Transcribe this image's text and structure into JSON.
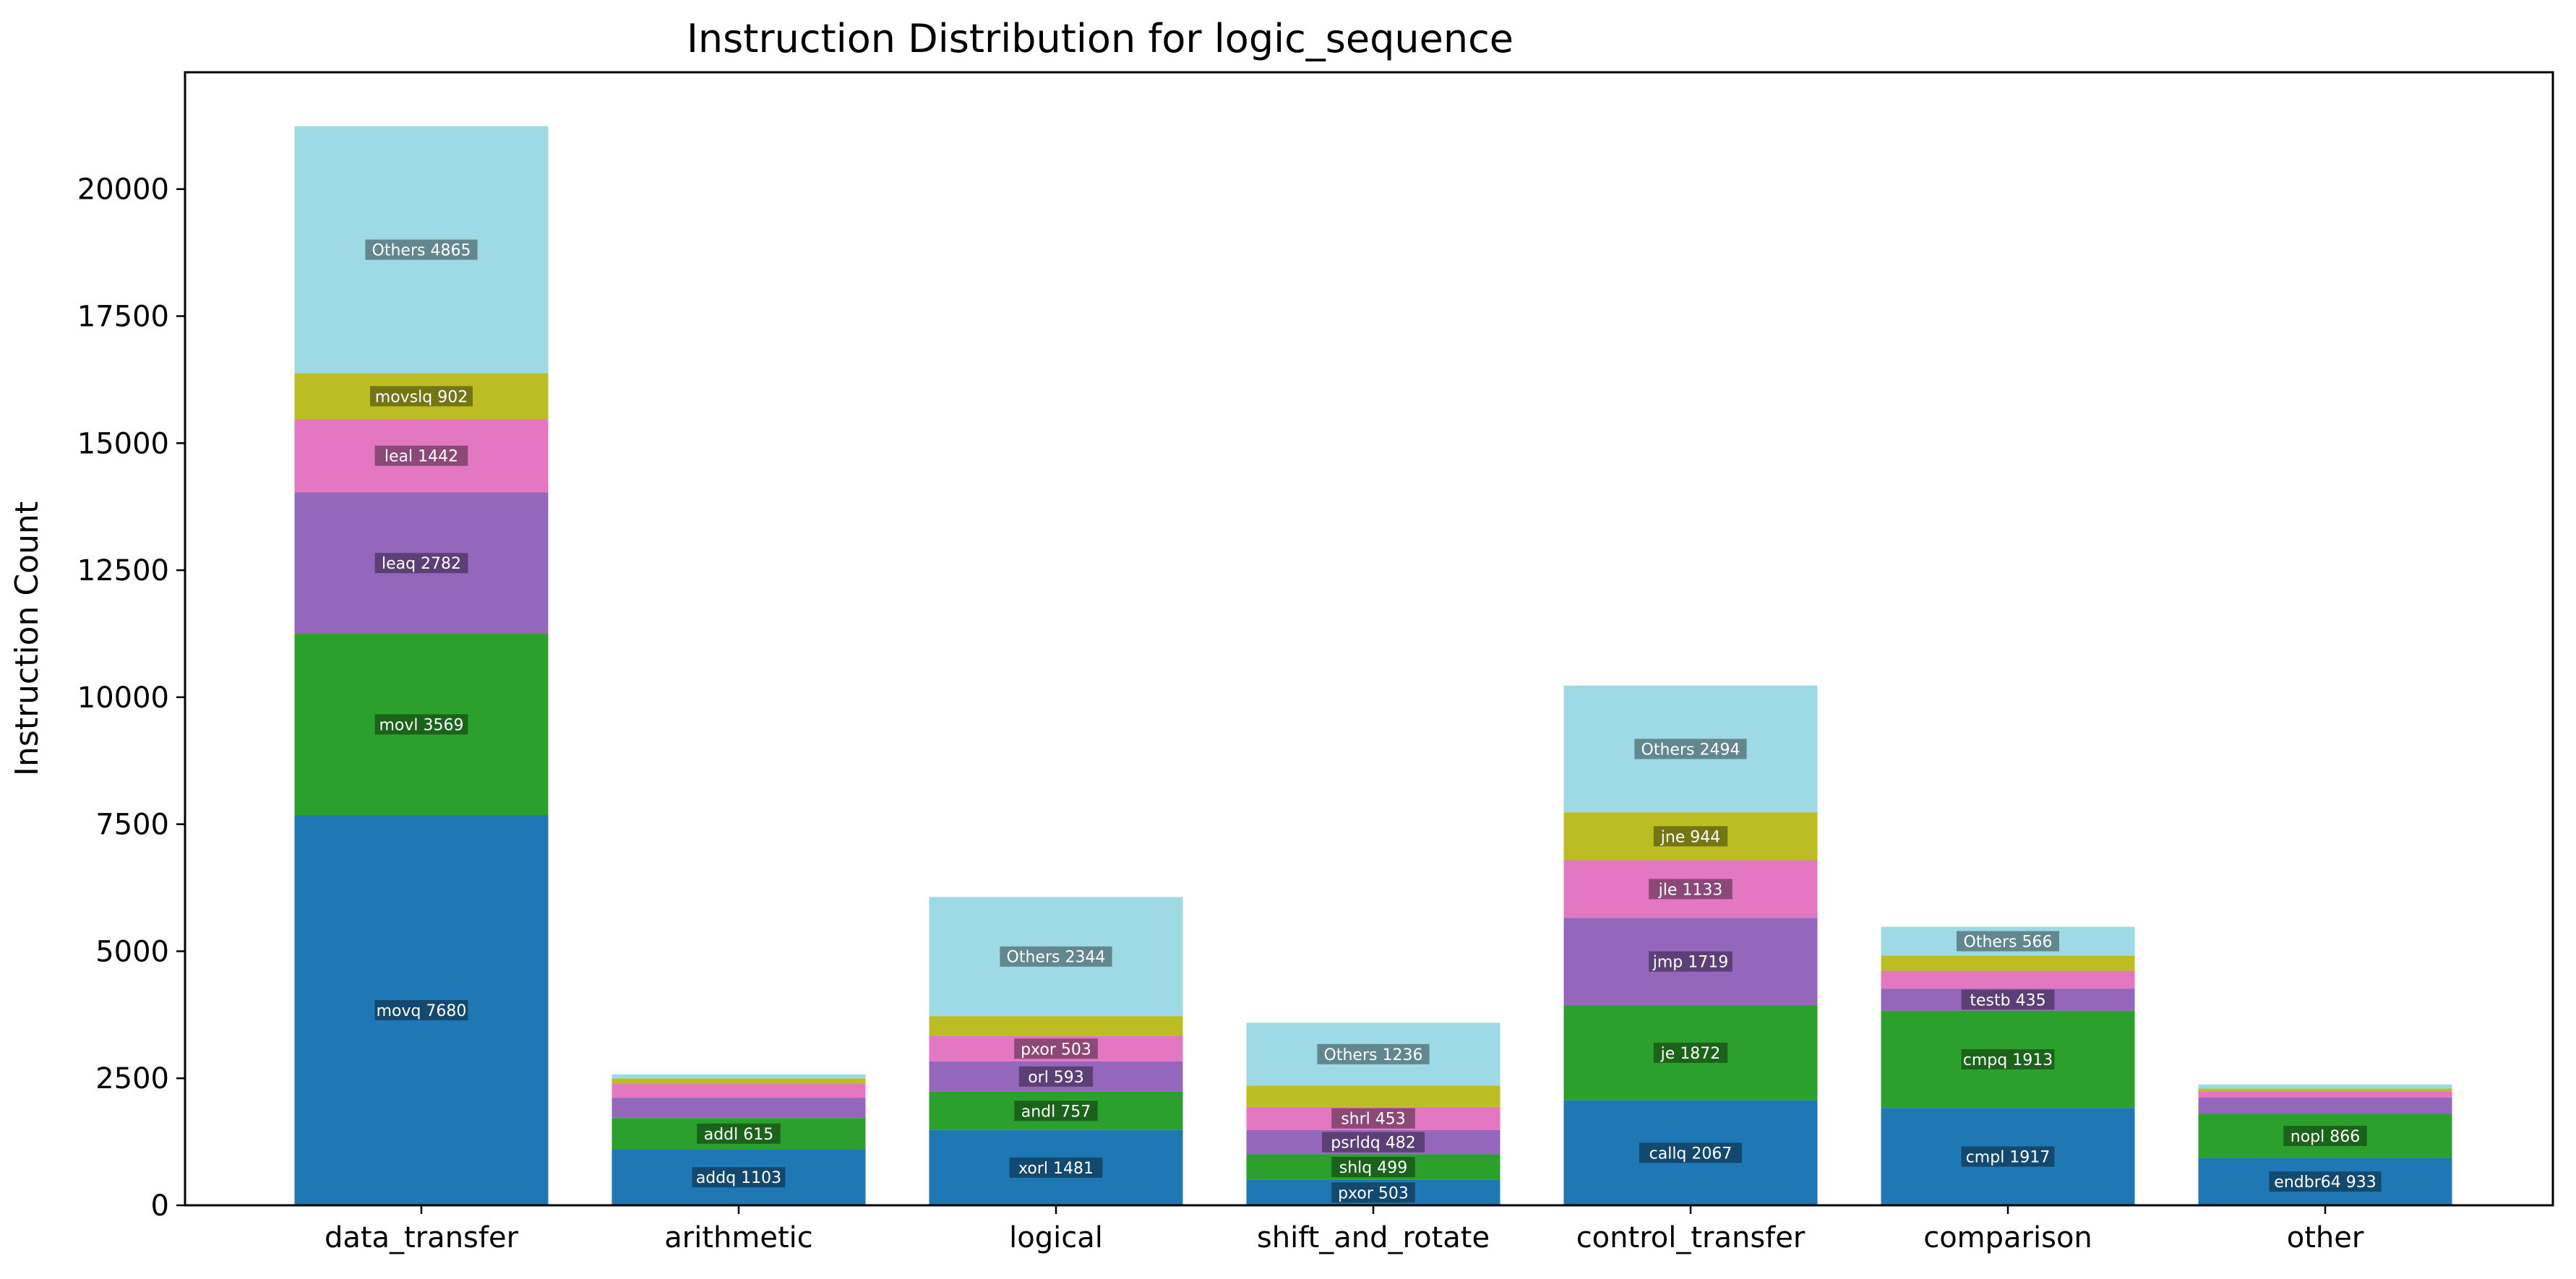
{
  "chart_data": {
    "type": "bar",
    "stacked": true,
    "title": "Instruction Distribution for logic_sequence",
    "xlabel": "",
    "ylabel": "Instruction Count",
    "ylim": [
      0,
      22300
    ],
    "yticks": [
      0,
      2500,
      5000,
      7500,
      10000,
      12500,
      15000,
      17500,
      20000
    ],
    "grid": false,
    "legend": "none",
    "segment_colors": [
      "#1f77b4",
      "#2ca02c",
      "#9467bd",
      "#e377c2",
      "#bcbd22",
      "#9edae5"
    ],
    "categories": [
      {
        "name": "data_transfer",
        "segments": [
          {
            "label": "movq 7680",
            "value": 7680
          },
          {
            "label": "movl 3569",
            "value": 3569
          },
          {
            "label": "leaq 2782",
            "value": 2782
          },
          {
            "label": "leal 1442",
            "value": 1442
          },
          {
            "label": "movslq 902",
            "value": 902
          },
          {
            "label": "Others 4865",
            "value": 4865
          }
        ]
      },
      {
        "name": "arithmetic",
        "segments": [
          {
            "label": "addq 1103",
            "value": 1103
          },
          {
            "label": "addl 615",
            "value": 615
          },
          {
            "label": "",
            "value": 400
          },
          {
            "label": "",
            "value": 280
          },
          {
            "label": "",
            "value": 100
          },
          {
            "label": "",
            "value": 80
          }
        ]
      },
      {
        "name": "logical",
        "segments": [
          {
            "label": "xorl 1481",
            "value": 1481
          },
          {
            "label": "andl 757",
            "value": 757
          },
          {
            "label": "orl 593",
            "value": 593
          },
          {
            "label": "pxor 503",
            "value": 503
          },
          {
            "label": "",
            "value": 390
          },
          {
            "label": "Others 2344",
            "value": 2344
          }
        ]
      },
      {
        "name": "shift_and_rotate",
        "segments": [
          {
            "label": "pxor 503",
            "value": 503
          },
          {
            "label": "shlq 499",
            "value": 499
          },
          {
            "label": "psrldq 482",
            "value": 482
          },
          {
            "label": "shrl 453",
            "value": 453
          },
          {
            "label": "",
            "value": 420
          },
          {
            "label": "Others 1236",
            "value": 1236
          }
        ]
      },
      {
        "name": "control_transfer",
        "segments": [
          {
            "label": "callq 2067",
            "value": 2067
          },
          {
            "label": "je 1872",
            "value": 1872
          },
          {
            "label": "jmp 1719",
            "value": 1719
          },
          {
            "label": "jle 1133",
            "value": 1133
          },
          {
            "label": "jne 944",
            "value": 944
          },
          {
            "label": "Others 2494",
            "value": 2494
          }
        ]
      },
      {
        "name": "comparison",
        "segments": [
          {
            "label": "cmpl 1917",
            "value": 1917
          },
          {
            "label": "cmpq 1913",
            "value": 1913
          },
          {
            "label": "testb 435",
            "value": 435
          },
          {
            "label": "",
            "value": 350
          },
          {
            "label": "",
            "value": 300
          },
          {
            "label": "Others 566",
            "value": 566
          }
        ]
      },
      {
        "name": "other",
        "segments": [
          {
            "label": "endbr64 933",
            "value": 933
          },
          {
            "label": "nopl 866",
            "value": 866
          },
          {
            "label": "",
            "value": 320
          },
          {
            "label": "",
            "value": 120
          },
          {
            "label": "",
            "value": 60
          },
          {
            "label": "",
            "value": 80
          }
        ]
      }
    ]
  }
}
